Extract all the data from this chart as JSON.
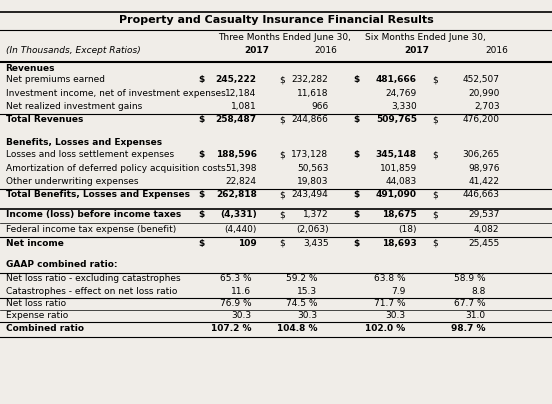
{
  "title": "Property and Casualty Insurance Financial Results",
  "subtitle_left": "(In Thousands, Except Ratios)",
  "col_years": [
    "2017",
    "2016",
    "2017",
    "2016"
  ],
  "bg_color": "#f0ede8",
  "font_size": 6.5,
  "title_font_size": 8.0
}
